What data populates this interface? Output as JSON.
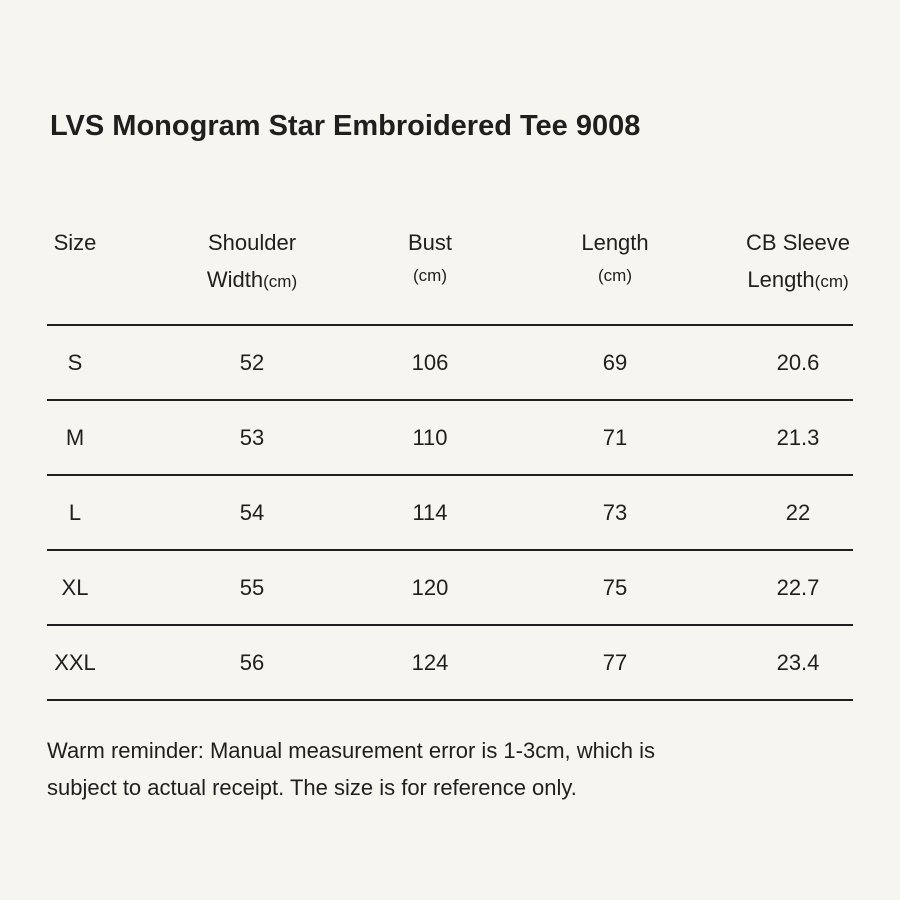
{
  "title": "LVS Monogram Star Embroidered Tee 9008",
  "table": {
    "header": [
      {
        "lines": [
          "Size"
        ]
      },
      {
        "lines": [
          "Shoulder",
          "Width"
        ],
        "unit": "(cm)"
      },
      {
        "lines": [
          "Bust"
        ],
        "unit": "(cm)"
      },
      {
        "lines": [
          "Length"
        ],
        "unit": "(cm)"
      },
      {
        "lines": [
          "CB Sleeve",
          "Length"
        ],
        "unit": "(cm)"
      }
    ],
    "rows": [
      [
        "S",
        52,
        106,
        69,
        20.6
      ],
      [
        "M",
        53,
        110,
        71,
        21.3
      ],
      [
        "L",
        54,
        114,
        73,
        22
      ],
      [
        "XL",
        55,
        120,
        75,
        22.7
      ],
      [
        "XXL",
        56,
        124,
        77,
        23.4
      ]
    ]
  },
  "note": [
    "Warm reminder: Manual measurement error is 1-3cm, which is",
    "subject to actual receipt. The size is for reference only."
  ]
}
